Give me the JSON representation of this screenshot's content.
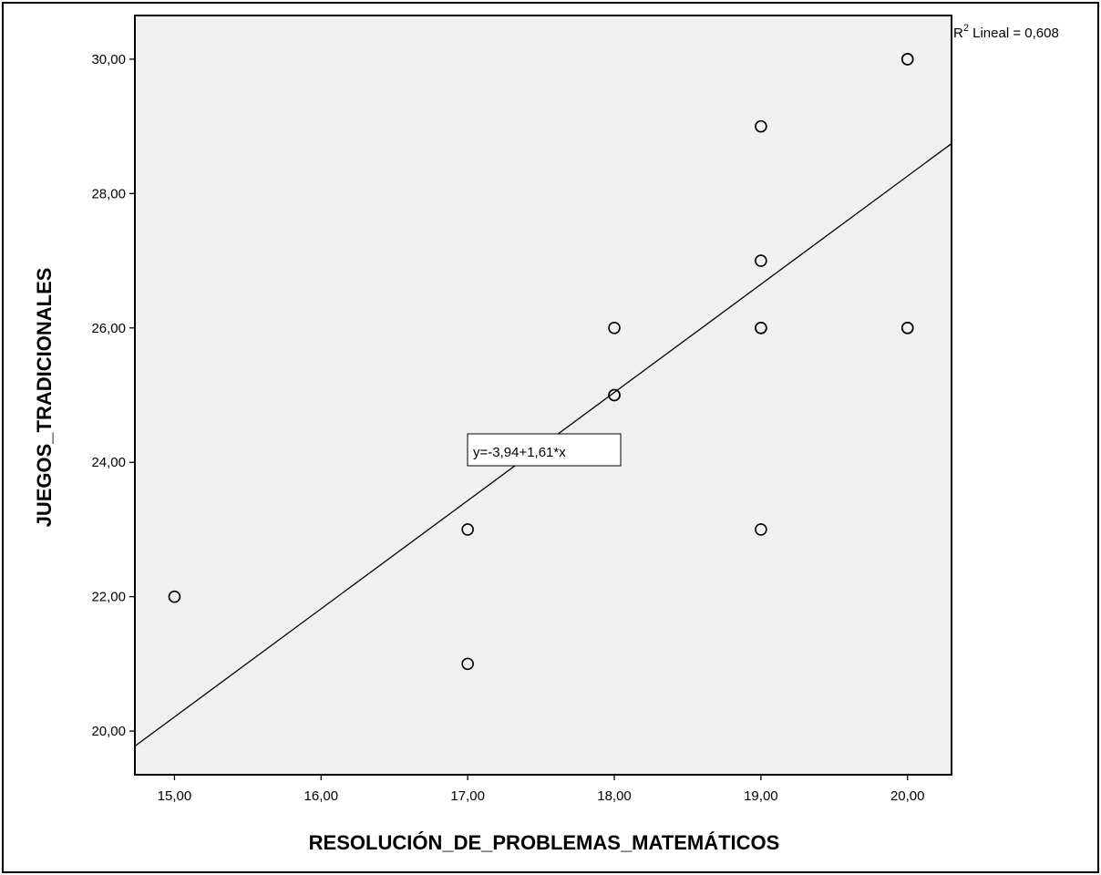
{
  "chart_data": {
    "type": "scatter",
    "xlabel": "RESOLUCIÓN_DE_PROBLEMAS_MATEMÁTICOS",
    "ylabel": "JUEGOS_TRADICIONALES",
    "xlim": [
      14.73,
      20.3
    ],
    "ylim": [
      19.35,
      30.65
    ],
    "x_ticks": [
      15,
      16,
      17,
      18,
      19,
      20
    ],
    "x_tick_labels": [
      "15,00",
      "16,00",
      "17,00",
      "18,00",
      "19,00",
      "20,00"
    ],
    "y_ticks": [
      20,
      22,
      24,
      26,
      28,
      30
    ],
    "y_tick_labels": [
      "20,00",
      "22,00",
      "24,00",
      "26,00",
      "28,00",
      "30,00"
    ],
    "points": [
      {
        "x": 15,
        "y": 22
      },
      {
        "x": 17,
        "y": 23
      },
      {
        "x": 17,
        "y": 21
      },
      {
        "x": 18,
        "y": 26
      },
      {
        "x": 18,
        "y": 25
      },
      {
        "x": 18,
        "y": 25
      },
      {
        "x": 19,
        "y": 29
      },
      {
        "x": 19,
        "y": 27
      },
      {
        "x": 19,
        "y": 26
      },
      {
        "x": 19,
        "y": 26
      },
      {
        "x": 19,
        "y": 23
      },
      {
        "x": 20,
        "y": 30
      },
      {
        "x": 20,
        "y": 30
      },
      {
        "x": 20,
        "y": 26
      },
      {
        "x": 20,
        "y": 26
      }
    ],
    "fit_line": {
      "intercept": -3.94,
      "slope": 1.61
    },
    "fit_label": "y=-3,94+1,61*x",
    "r2_prefix": "R",
    "r2_sup": "2",
    "r2_suffix": " Lineal = 0,608",
    "grid": false,
    "colors": {
      "plot_background": "#f0f0f0",
      "marker_stroke": "#000000",
      "line": "#000000"
    }
  }
}
